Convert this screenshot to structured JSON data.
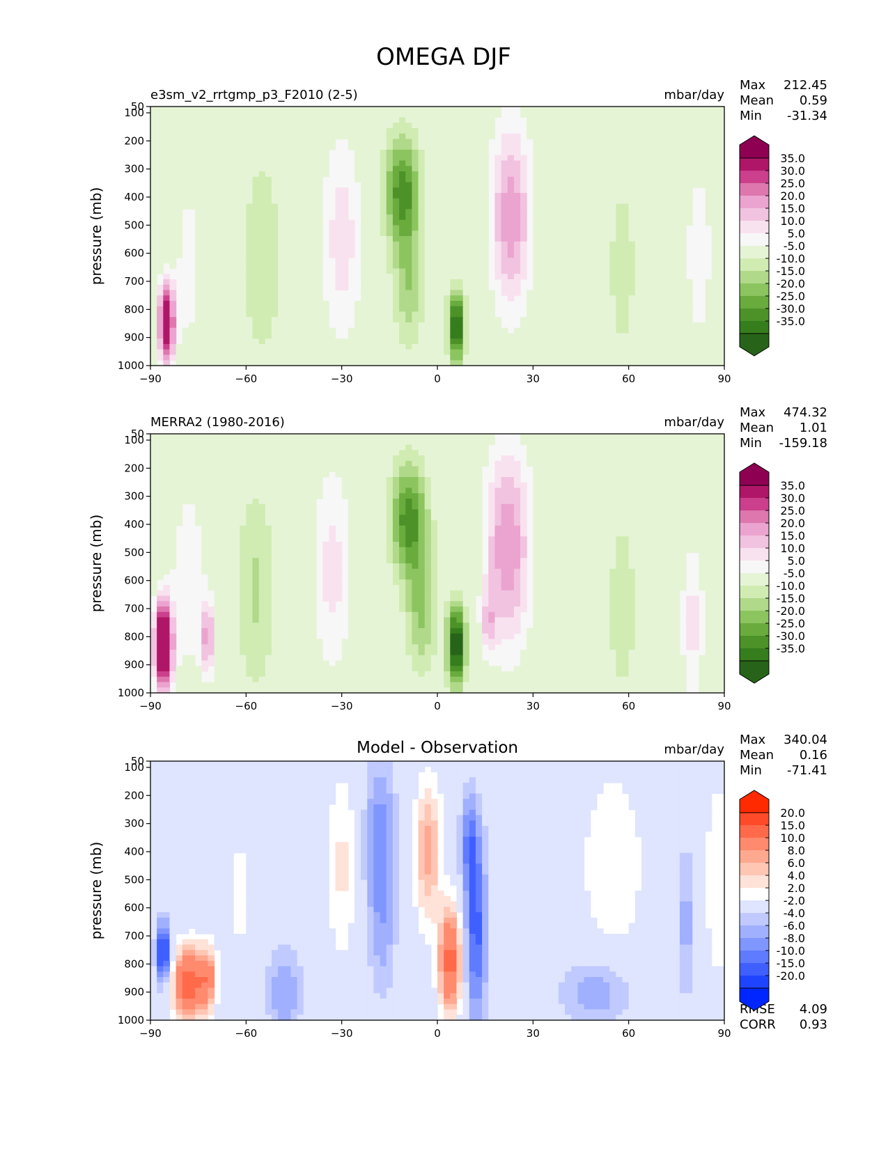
{
  "title": "OMEGA DJF",
  "panels": [
    {
      "id": "test",
      "left_title": "e3sm_v2_rrtgmp_p3_F2010 (2-5)",
      "center_title": "",
      "units": "mbar/day",
      "stats": [
        {
          "label": "Max",
          "value": "212.45"
        },
        {
          "label": "Mean",
          "value": "0.59"
        },
        {
          "label": "Min",
          "value": "-31.34"
        }
      ],
      "colorbar": {
        "labels": [
          "35.0",
          "30.0",
          "25.0",
          "20.0",
          "15.0",
          "10.0",
          "5.0",
          "-5.0",
          "-10.0",
          "-15.0",
          "-20.0",
          "-25.0",
          "-30.0",
          "-35.0"
        ],
        "colors": [
          "#8e0152",
          "#b01667",
          "#cb3f8c",
          "#de77ae",
          "#eba4cf",
          "#f1c3e0",
          "#f9e2ef",
          "#f7f7f7",
          "#e6f4d6",
          "#d0ecb2",
          "#b0d98a",
          "#8cc55f",
          "#6aab3e",
          "#4c9229",
          "#367d1e",
          "#276419"
        ]
      },
      "extra_stats": []
    },
    {
      "id": "ref",
      "left_title": "MERRA2 (1980-2016)",
      "center_title": "",
      "units": "mbar/day",
      "stats": [
        {
          "label": "Max",
          "value": "474.32"
        },
        {
          "label": "Mean",
          "value": "1.01"
        },
        {
          "label": "Min",
          "value": "-159.18"
        }
      ],
      "colorbar": {
        "labels": [
          "35.0",
          "30.0",
          "25.0",
          "20.0",
          "15.0",
          "10.0",
          "5.0",
          "-5.0",
          "-10.0",
          "-15.0",
          "-20.0",
          "-25.0",
          "-30.0",
          "-35.0"
        ],
        "colors": [
          "#8e0152",
          "#b01667",
          "#cb3f8c",
          "#de77ae",
          "#eba4cf",
          "#f1c3e0",
          "#f9e2ef",
          "#f7f7f7",
          "#e6f4d6",
          "#d0ecb2",
          "#b0d98a",
          "#8cc55f",
          "#6aab3e",
          "#4c9229",
          "#367d1e",
          "#276419"
        ]
      },
      "extra_stats": []
    },
    {
      "id": "diff",
      "left_title": "",
      "center_title": "Model - Observation",
      "units": "mbar/day",
      "stats": [
        {
          "label": "Max",
          "value": "340.04"
        },
        {
          "label": "Mean",
          "value": "0.16"
        },
        {
          "label": "Min",
          "value": "-71.41"
        }
      ],
      "colorbar": {
        "labels": [
          "20.0",
          "15.0",
          "10.0",
          "8.0",
          "6.0",
          "4.0",
          "2.0",
          "-2.0",
          "-4.0",
          "-6.0",
          "-8.0",
          "-10.0",
          "-15.0",
          "-20.0"
        ],
        "colors": [
          "#ff2a00",
          "#ff4a2a",
          "#ff6a4a",
          "#ff8a6e",
          "#ffa890",
          "#ffc6b4",
          "#ffe2d8",
          "#ffffff",
          "#dfe4ff",
          "#c0caff",
          "#a0b0ff",
          "#8096ff",
          "#5f7bff",
          "#3f5fff",
          "#1f44ff",
          "#0026ff"
        ]
      },
      "extra_stats": [
        {
          "label": "RMSE",
          "value": "4.09"
        },
        {
          "label": "CORR",
          "value": "0.93"
        }
      ]
    }
  ],
  "chart_data": [
    {
      "type": "heatmap",
      "title": "e3sm_v2_rrtgmp_p3_F2010 (2-5)",
      "xlabel": "",
      "ylabel": "pressure (mb)",
      "xlim": [
        -90,
        90
      ],
      "ylim": [
        1000,
        50
      ],
      "xticks": [
        "−90",
        "−60",
        "−30",
        "0",
        "30",
        "60",
        "90"
      ],
      "yticks": [
        "50",
        "100",
        "200",
        "300",
        "400",
        "500",
        "600",
        "700",
        "800",
        "900",
        "1000"
      ],
      "features": [
        {
          "lat": -85,
          "p": 850,
          "sx": 1.8,
          "sy": 100,
          "v": 45
        },
        {
          "lat": -78,
          "p": 650,
          "sx": 3,
          "sy": 220,
          "v": 8
        },
        {
          "lat": -55,
          "p": 620,
          "sx": 4.5,
          "sy": 260,
          "v": -10
        },
        {
          "lat": -30,
          "p": 550,
          "sx": 4.5,
          "sy": 260,
          "v": 13
        },
        {
          "lat": -11,
          "p": 380,
          "sx": 4,
          "sy": 140,
          "v": -28
        },
        {
          "lat": -9,
          "p": 720,
          "sx": 3.5,
          "sy": 150,
          "v": -14
        },
        {
          "lat": 6,
          "p": 860,
          "sx": 1.8,
          "sy": 90,
          "v": -38
        },
        {
          "lat": 23,
          "p": 470,
          "sx": 4.5,
          "sy": 230,
          "v": 24
        },
        {
          "lat": 58,
          "p": 650,
          "sx": 3,
          "sy": 220,
          "v": -9
        },
        {
          "lat": 82,
          "p": 600,
          "sx": 3,
          "sy": 230,
          "v": 9
        }
      ]
    },
    {
      "type": "heatmap",
      "title": "MERRA2 (1980-2016)",
      "xlabel": "",
      "ylabel": "pressure (mb)",
      "xlim": [
        -90,
        90
      ],
      "ylim": [
        1000,
        50
      ],
      "xticks": [
        "−90",
        "−60",
        "−30",
        "0",
        "30",
        "60",
        "90"
      ],
      "yticks": [
        "50",
        "100",
        "200",
        "300",
        "400",
        "500",
        "600",
        "700",
        "800",
        "900",
        "1000"
      ],
      "features": [
        {
          "lat": -86,
          "p": 830,
          "sx": 2,
          "sy": 110,
          "v": 55
        },
        {
          "lat": -72,
          "p": 800,
          "sx": 1.6,
          "sy": 90,
          "v": 22
        },
        {
          "lat": -78,
          "p": 600,
          "sx": 4,
          "sy": 250,
          "v": 9
        },
        {
          "lat": -57,
          "p": 630,
          "sx": 4.5,
          "sy": 260,
          "v": -11
        },
        {
          "lat": -33,
          "p": 560,
          "sx": 4.5,
          "sy": 260,
          "v": 12
        },
        {
          "lat": -9,
          "p": 380,
          "sx": 4,
          "sy": 140,
          "v": -28
        },
        {
          "lat": -5,
          "p": 700,
          "sx": 3.5,
          "sy": 160,
          "v": -16
        },
        {
          "lat": 6,
          "p": 830,
          "sx": 2,
          "sy": 100,
          "v": -42
        },
        {
          "lat": 22,
          "p": 480,
          "sx": 5,
          "sy": 250,
          "v": 25
        },
        {
          "lat": 16,
          "p": 750,
          "sx": 1.6,
          "sy": 80,
          "v": 14
        },
        {
          "lat": 58,
          "p": 700,
          "sx": 3,
          "sy": 220,
          "v": -10
        },
        {
          "lat": 80,
          "p": 750,
          "sx": 2.5,
          "sy": 200,
          "v": 12
        }
      ]
    },
    {
      "type": "heatmap",
      "title": "Model - Observation",
      "xlabel": "",
      "ylabel": "pressure (mb)",
      "xlim": [
        -90,
        90
      ],
      "ylim": [
        1000,
        50
      ],
      "xticks": [
        "−90",
        "−60",
        "−30",
        "0",
        "30",
        "60",
        "90"
      ],
      "yticks": [
        "50",
        "100",
        "200",
        "300",
        "400",
        "500",
        "600",
        "700",
        "800",
        "900",
        "1000"
      ],
      "features": [
        {
          "lat": -86,
          "p": 760,
          "sx": 1.6,
          "sy": 80,
          "v": -15
        },
        {
          "lat": -78,
          "p": 870,
          "sx": 3.5,
          "sy": 90,
          "v": 18
        },
        {
          "lat": -72,
          "p": 850,
          "sx": 2,
          "sy": 80,
          "v": 10
        },
        {
          "lat": -62,
          "p": 550,
          "sx": 3,
          "sy": 250,
          "v": 2.5
        },
        {
          "lat": -48,
          "p": 900,
          "sx": 4,
          "sy": 110,
          "v": -6
        },
        {
          "lat": -30,
          "p": 450,
          "sx": 3.5,
          "sy": 240,
          "v": 4.5
        },
        {
          "lat": -18,
          "p": 380,
          "sx": 3.5,
          "sy": 220,
          "v": -8
        },
        {
          "lat": -17,
          "p": 750,
          "sx": 3,
          "sy": 160,
          "v": -3
        },
        {
          "lat": -3,
          "p": 400,
          "sx": 3,
          "sy": 180,
          "v": 9
        },
        {
          "lat": 4,
          "p": 790,
          "sx": 2.5,
          "sy": 130,
          "v": 17
        },
        {
          "lat": 12,
          "p": 680,
          "sx": 2.5,
          "sy": 240,
          "v": -11
        },
        {
          "lat": 10,
          "p": 360,
          "sx": 2,
          "sy": 120,
          "v": -7
        },
        {
          "lat": 50,
          "p": 900,
          "sx": 8,
          "sy": 90,
          "v": -6
        },
        {
          "lat": 55,
          "p": 450,
          "sx": 8,
          "sy": 280,
          "v": 3.5
        },
        {
          "lat": 78,
          "p": 650,
          "sx": 2,
          "sy": 200,
          "v": -5
        },
        {
          "lat": 88,
          "p": 500,
          "sx": 3,
          "sy": 280,
          "v": 4
        }
      ]
    }
  ]
}
